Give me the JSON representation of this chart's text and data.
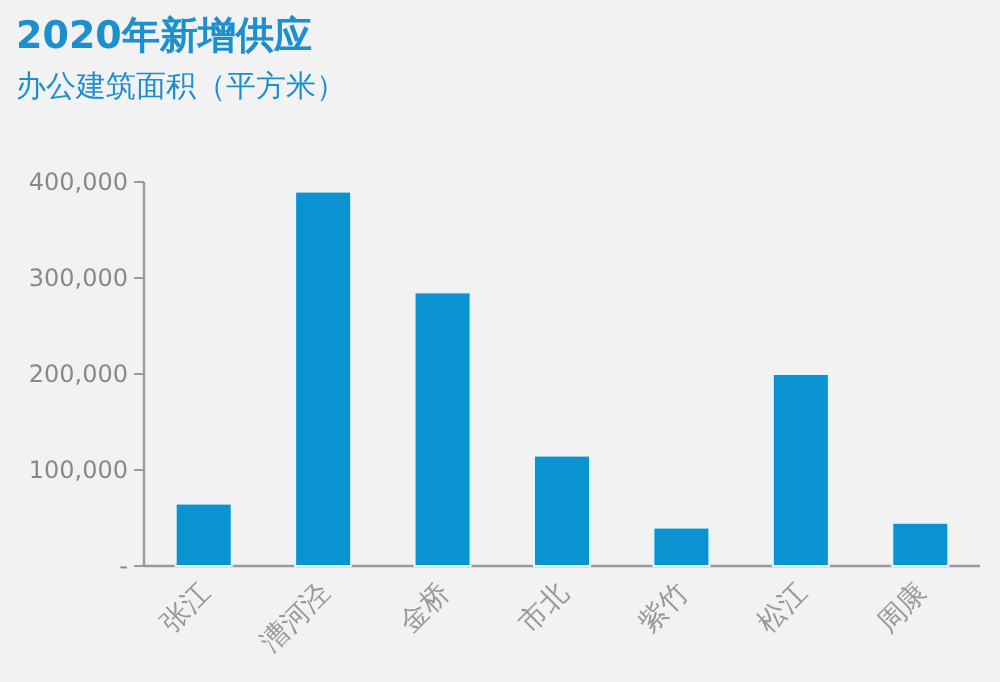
{
  "chart_data": {
    "type": "bar",
    "title": "2020年新增供应",
    "subtitle": "办公建筑面积（平方米）",
    "categories": [
      "张江",
      "漕河泾",
      "金桥",
      "市北",
      "紫竹",
      "松江",
      "周康"
    ],
    "values": [
      65000,
      390000,
      285000,
      115000,
      40000,
      200000,
      45000
    ],
    "color": "#0a93d1",
    "ylim": [
      0,
      400000
    ],
    "yticks": [
      {
        "value": 0,
        "label": "-"
      },
      {
        "value": 100000,
        "label": "100,000"
      },
      {
        "value": 200000,
        "label": "200,000"
      },
      {
        "value": 300000,
        "label": "300,000"
      },
      {
        "value": 400000,
        "label": "400,000"
      }
    ]
  }
}
